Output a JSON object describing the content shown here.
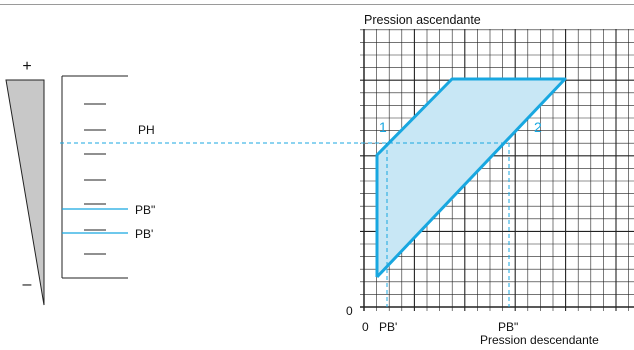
{
  "scale": {
    "plus_symbol": "+",
    "minus_symbol": "–",
    "label_ph": "PH",
    "label_pb_second": "PB\"",
    "label_pb_prime": "PB'"
  },
  "graph": {
    "y_axis_title": "Pression ascendante",
    "x_axis_title": "Pression descendante",
    "y_origin_label": "0",
    "x_origin_label": "0",
    "x_label_pb_prime": "PB'",
    "x_label_pb_second": "PB\"",
    "line1_label": "1",
    "line2_label": "2"
  },
  "colors": {
    "accent": "#18a7e0",
    "fill": "#c8e7f5",
    "wedge": "#c8c8c8",
    "grid": "#222222"
  }
}
